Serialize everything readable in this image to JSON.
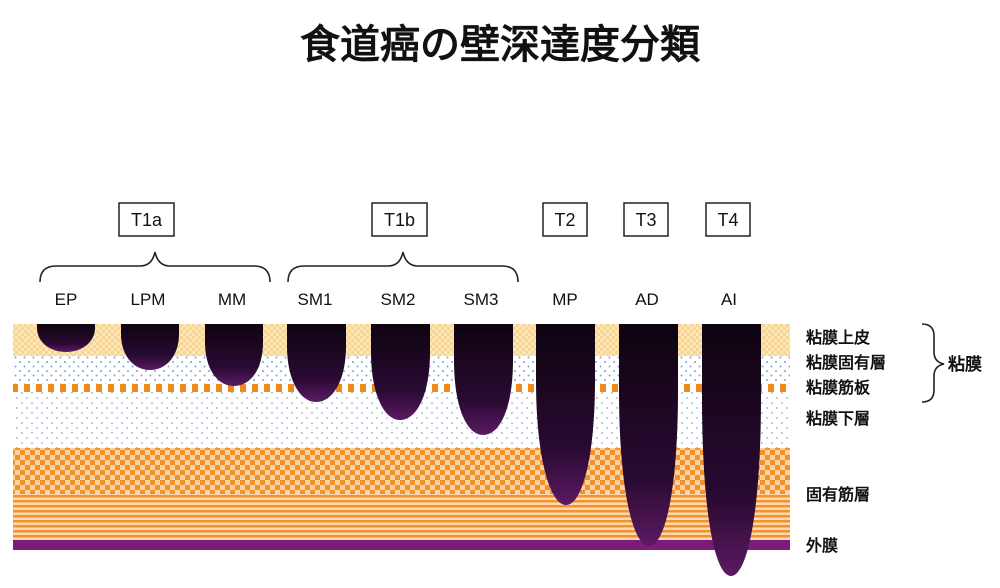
{
  "title": "食道癌の壁深達度分類",
  "colors": {
    "epithelium": "#f7d48f",
    "lamina_propria_dots": "#7fa6c9",
    "muscularis_mucosae": "#ef8a1c",
    "submucosa_dots": "#8fb0cf",
    "muscularis_propria": "#f3922c",
    "adventitia": "#7a1c78",
    "tumor_light": "#5c1a62",
    "tumor_dark": "#0e0410"
  },
  "stages": [
    {
      "key": "t1a",
      "label": "T1a",
      "subs": [
        "ep",
        "lpm",
        "mm"
      ]
    },
    {
      "key": "t1b",
      "label": "T1b",
      "subs": [
        "sm1",
        "sm2",
        "sm3"
      ]
    },
    {
      "key": "t2",
      "label": "T2",
      "subs": [
        "mp"
      ]
    },
    {
      "key": "t3",
      "label": "T3",
      "subs": [
        "ad"
      ]
    },
    {
      "key": "t4",
      "label": "T4",
      "subs": [
        "ai"
      ]
    }
  ],
  "depths": [
    {
      "key": "ep",
      "label": "EP",
      "layer": "epithelium"
    },
    {
      "key": "lpm",
      "label": "LPM",
      "layer": "lamina_propria"
    },
    {
      "key": "mm",
      "label": "MM",
      "layer": "muscularis_mucosae"
    },
    {
      "key": "sm1",
      "label": "SM1",
      "layer": "submucosa"
    },
    {
      "key": "sm2",
      "label": "SM2",
      "layer": "submucosa"
    },
    {
      "key": "sm3",
      "label": "SM3",
      "layer": "submucosa"
    },
    {
      "key": "mp",
      "label": "MP",
      "layer": "muscularis_propria"
    },
    {
      "key": "ad",
      "label": "AD",
      "layer": "adventitia"
    },
    {
      "key": "ai",
      "label": "AI",
      "layer": "adjacent_structures"
    }
  ],
  "layers": {
    "epithelium": "粘膜上皮",
    "lamina_propria": "粘膜固有層",
    "muscularis_mucosae": "粘膜筋板",
    "submucosa": "粘膜下層",
    "muscularis_propria": "固有筋層",
    "adventitia": "外膜"
  },
  "mucosa_group": "粘膜"
}
